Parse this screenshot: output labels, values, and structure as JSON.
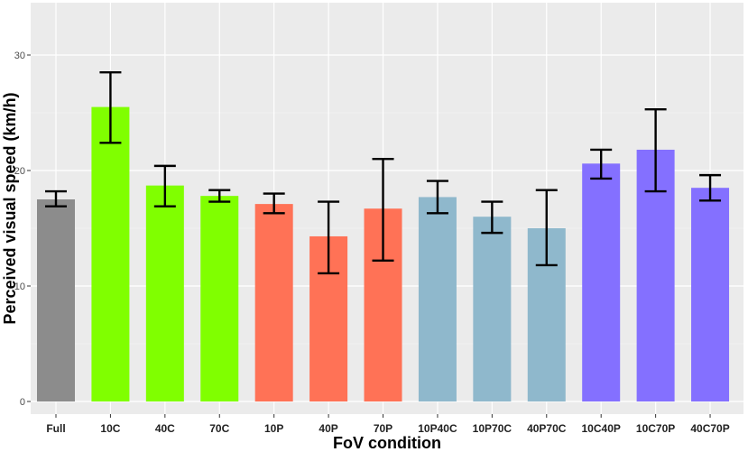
{
  "chart_data": {
    "type": "bar",
    "title": "",
    "xlabel": "FoV condition",
    "ylabel": "Perceived visual speed (km/h)",
    "ylim": [
      0,
      33
    ],
    "yticks": [
      0,
      10,
      20,
      30
    ],
    "grid": true,
    "categories": [
      "Full",
      "10C",
      "40C",
      "70C",
      "10P",
      "40P",
      "70P",
      "10P40C",
      "10P70C",
      "40P70C",
      "10C40P",
      "10C70P",
      "40C70P"
    ],
    "values": [
      17.5,
      25.5,
      18.7,
      17.8,
      17.1,
      14.3,
      16.7,
      17.7,
      16.0,
      15.0,
      20.6,
      21.8,
      18.5
    ],
    "error_low": [
      16.9,
      22.4,
      16.9,
      17.3,
      16.3,
      11.1,
      12.2,
      16.3,
      14.6,
      11.8,
      19.3,
      18.2,
      17.4
    ],
    "error_high": [
      18.2,
      28.5,
      20.4,
      18.3,
      18.0,
      17.3,
      21.0,
      19.1,
      17.3,
      18.3,
      21.8,
      25.3,
      19.6
    ],
    "colors": [
      "#8c8c8c",
      "#80ff00",
      "#80ff00",
      "#80ff00",
      "#ff7256",
      "#ff7256",
      "#ff7256",
      "#8fb8cc",
      "#8fb8cc",
      "#8fb8cc",
      "#8470ff",
      "#8470ff",
      "#8470ff"
    ],
    "panel_color": "#ebebeb",
    "grid_color": "#ffffff"
  }
}
